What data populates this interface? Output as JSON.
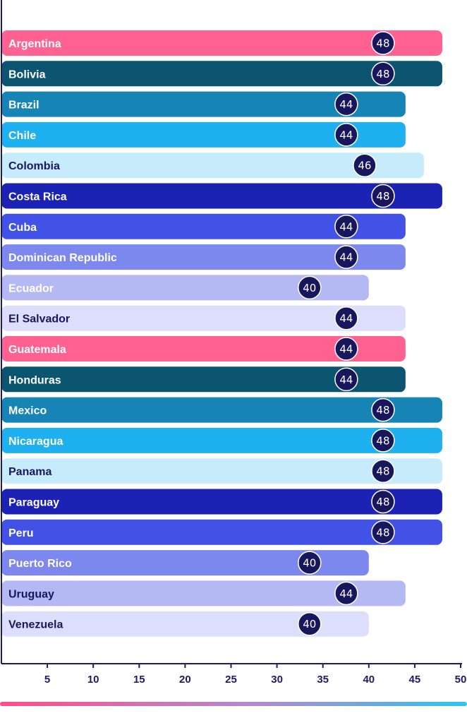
{
  "chart_data": {
    "type": "bar",
    "orientation": "horizontal",
    "title": "",
    "xlabel": "",
    "ylabel": "",
    "xlim": [
      0,
      50
    ],
    "xticks": [
      5,
      10,
      15,
      20,
      25,
      30,
      35,
      40,
      45,
      50
    ],
    "grid": false,
    "legend": "none",
    "categories": [
      "Argentina",
      "Bolivia",
      "Brazil",
      "Chile",
      "Colombia",
      "Costa Rica",
      "Cuba",
      "Dominican Republic",
      "Ecuador",
      "El Salvador",
      "Guatemala",
      "Honduras",
      "Mexico",
      "Nicaragua",
      "Panama",
      "Paraguay",
      "Peru",
      "Puerto Rico",
      "Uruguay",
      "Venezuela"
    ],
    "values": [
      48,
      48,
      44,
      44,
      46,
      48,
      44,
      44,
      40,
      44,
      44,
      44,
      48,
      48,
      48,
      48,
      48,
      40,
      44,
      40
    ],
    "bar_colors": [
      "#ff6291",
      "#0b5570",
      "#1685b5",
      "#1fb1ef",
      "#c6ecfb",
      "#1c22b3",
      "#4352e6",
      "#7d88ef",
      "#b4b9f4",
      "#dcdefb",
      "#ff6291",
      "#0b5570",
      "#1685b5",
      "#1fb1ef",
      "#c6ecfb",
      "#1c22b3",
      "#4352e6",
      "#7d88ef",
      "#b4b9f4",
      "#dcdefb"
    ],
    "label_colors": [
      "#ffffff",
      "#ffffff",
      "#ffffff",
      "#ffffff",
      "#18175e",
      "#ffffff",
      "#ffffff",
      "#ffffff",
      "#ffffff",
      "#18175e",
      "#ffffff",
      "#ffffff",
      "#ffffff",
      "#ffffff",
      "#18175e",
      "#ffffff",
      "#ffffff",
      "#ffffff",
      "#18175e",
      "#18175e"
    ],
    "badge_color": "#18175e",
    "axis_color": "#1d1a6b",
    "gradient_colors": [
      "#ff4d8a",
      "#b28ad0",
      "#2ec4f2"
    ]
  }
}
